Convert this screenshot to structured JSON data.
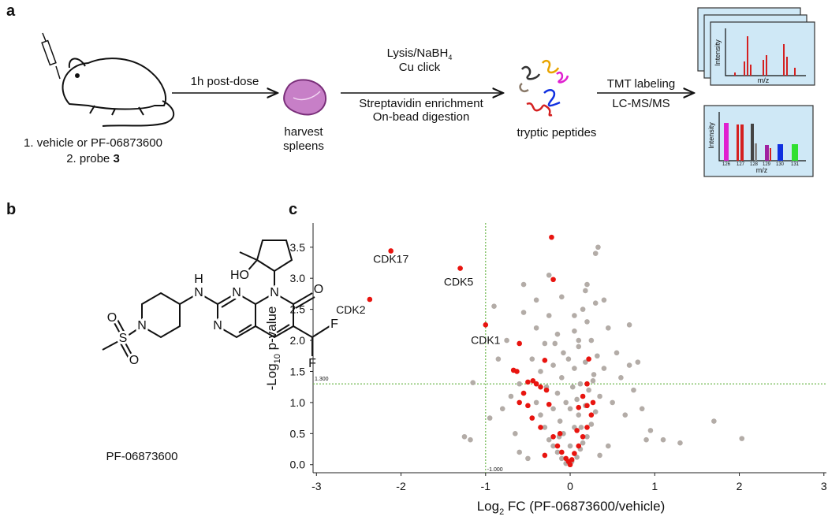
{
  "panel_a": {
    "label": "a",
    "treatment": {
      "line1": "1. vehicle or PF-06873600",
      "line2": "2. probe ",
      "probe_number": "3"
    },
    "arrow1": "1h post-dose",
    "tissue": [
      "harvest",
      "spleens"
    ],
    "arrow2_above": {
      "text": "Lysis/NaBH",
      "subscript": "4",
      "line2": "Cu click"
    },
    "arrow2_below": [
      "Streptavidin enrichment",
      "On-bead digestion"
    ],
    "peptides": "tryptic peptides",
    "arrow3": [
      "TMT labeling",
      "LC-MS/MS"
    ],
    "spectrum_top": {
      "y_label": "Intensity",
      "x_label": "m/z"
    },
    "spectrum_bottom": {
      "y_label": "Intensity",
      "x_label": "m/z",
      "channels": [
        "126",
        "127",
        "128",
        "129",
        "130",
        "131"
      ]
    }
  },
  "panel_b": {
    "label": "b",
    "atoms": [
      "H",
      "N",
      "N",
      "N",
      "N",
      "O",
      "HO",
      "F",
      "F",
      "N",
      "S",
      "O",
      "O"
    ],
    "compound": "PF-06873600"
  },
  "chart_data": {
    "type": "scatter",
    "panel_label": "c",
    "x_label": {
      "prefix": "Log",
      "subscript": "2",
      "suffix": " FC (PF-06873600/vehicle)"
    },
    "y_label": {
      "prefix": "-Log",
      "subscript": "10",
      "suffix": " p-value"
    },
    "xlim": [
      -3.04,
      3.03
    ],
    "ylim": [
      -0.13,
      3.89
    ],
    "xticks": [
      -3,
      -2,
      -1,
      0,
      1,
      2,
      3
    ],
    "yticks": [
      {
        "value": 0,
        "label": "0.0"
      },
      {
        "value": 0.5,
        "label": "0.5"
      },
      {
        "value": 1,
        "label": "1.0"
      },
      {
        "value": 1.5,
        "label": "1.5"
      },
      {
        "value": 2,
        "label": "2.0"
      },
      {
        "value": 2.5,
        "label": "2.5"
      },
      {
        "value": 3,
        "label": "3.0"
      },
      {
        "value": 3.5,
        "label": "3.5"
      }
    ],
    "thresholds": {
      "y": {
        "value": 1.3,
        "label": "1.300"
      },
      "x": {
        "value": -1,
        "label": "-1.000"
      }
    },
    "threshold_color": "#6fb84f",
    "series": [
      {
        "color": "#b3aca7",
        "x": [
          -0.05,
          0.02,
          -0.1,
          0.08,
          -0.15,
          0.12,
          -0.2,
          0.15,
          -0.25,
          0.2,
          -0.08,
          0.05,
          -0.3,
          0.25,
          -0.12,
          0.1,
          -0.35,
          0.3,
          -0.2,
          0.18,
          -0.05,
          0.08,
          -0.4,
          0.35,
          -0.15,
          0.22,
          -0.28,
          0.12,
          -0.1,
          0.28,
          -0.35,
          0.05,
          -0.2,
          0.18,
          -0.45,
          0.32,
          -0.08,
          0.1,
          -0.3,
          0.25,
          -0.15,
          0.05,
          -0.4,
          0.2,
          -0.25,
          0.15,
          -0.55,
          0.3,
          -0.1,
          0.18,
          0.3,
          0.33,
          -0.25,
          0.2,
          0.45,
          0.55,
          0.6,
          0.7,
          0.75,
          0.5,
          0.65,
          0.85,
          0.9,
          1.1,
          1.3,
          1.7,
          2.03,
          -0.6,
          -0.7,
          -0.8,
          -0.75,
          -0.9,
          -0.85,
          -0.95,
          -1.15,
          -1.25,
          -1.18,
          -0.65,
          -0.55,
          -0.4,
          -0.6,
          0.45,
          0.4,
          0.7,
          0.8,
          0.95,
          -0.5,
          0.35,
          0,
          0,
          0.03,
          -0.02,
          0.05,
          0.1,
          -0.18,
          0.13,
          -0.13,
          0.27,
          0.4
        ],
        "values": [
          0.02,
          0.05,
          0.1,
          0.12,
          0.2,
          0.25,
          0.3,
          0.35,
          0.4,
          0.45,
          0.5,
          0.6,
          0.6,
          0.65,
          0.7,
          0.8,
          0.8,
          0.85,
          0.9,
          0.95,
          1,
          1.05,
          1,
          1.1,
          1.15,
          1.2,
          1.25,
          1.3,
          1.4,
          1.45,
          1.5,
          1.55,
          1.6,
          1.65,
          1.7,
          1.75,
          1.8,
          1.9,
          1.95,
          2,
          2.1,
          2.15,
          2.2,
          2.3,
          2.4,
          2.5,
          2.45,
          2.6,
          2.7,
          2.8,
          3.4,
          3.5,
          3.05,
          2.9,
          2.2,
          1.8,
          1.4,
          2.25,
          1.2,
          1,
          0.8,
          0.9,
          0.4,
          0.4,
          0.35,
          0.7,
          0.42,
          1.3,
          1.1,
          0.9,
          2,
          2.55,
          1.7,
          0.75,
          1.32,
          0.45,
          0.4,
          0.5,
          2.9,
          2.65,
          0.2,
          0.3,
          2.65,
          1.6,
          1.65,
          0.55,
          0.1,
          0.15,
          0.3,
          0.9,
          1.25,
          1.7,
          2.4,
          2,
          1.95,
          0.6,
          0.45,
          1.35,
          1.55
        ]
      },
      {
        "color": "#e8140f",
        "x": [
          -2.12,
          -1.3,
          -2.37,
          -1,
          -0.22,
          -0.2,
          -0.6,
          -0.67,
          -0.63,
          -0.3,
          -0.5,
          -0.44,
          -0.4,
          -0.35,
          -0.55,
          -0.6,
          -0.5,
          -0.28,
          -0.25,
          -0.45,
          -0.35,
          -0.2,
          -0.15,
          -0.1,
          -0.05,
          -0.02,
          0,
          0.02,
          0.05,
          0.1,
          0.15,
          0.2,
          0.25,
          0.2,
          0.1,
          0.15,
          0.2,
          0.27,
          0.22,
          -0.12,
          -0.3,
          0.08
        ],
        "values": [
          3.44,
          3.16,
          2.66,
          2.25,
          3.66,
          2.98,
          1.95,
          1.52,
          1.5,
          1.68,
          1.33,
          1.35,
          1.3,
          1.25,
          1.15,
          1,
          0.95,
          1.2,
          0.97,
          0.75,
          0.6,
          0.45,
          0.3,
          0.2,
          0.1,
          0.05,
          0,
          0.08,
          0.18,
          0.3,
          0.45,
          0.6,
          0.8,
          0.95,
          0.92,
          1.1,
          1.3,
          1,
          1.7,
          0.5,
          0.15,
          0.55
        ]
      }
    ],
    "annotations": [
      "CDK17",
      "CDK5",
      "CDK2",
      "CDK1"
    ]
  }
}
